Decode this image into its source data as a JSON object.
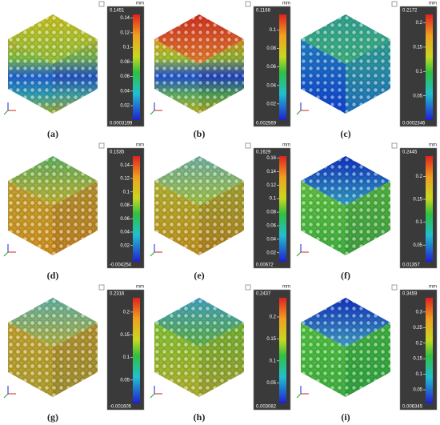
{
  "panels": [
    {
      "label": "(a)",
      "unit": "mm",
      "scale_max": 0.1451,
      "scale_min": 0.0003199,
      "ticks": [
        0.14,
        0.12,
        0.1,
        0.08,
        0.06,
        0.04,
        0.02
      ]
    },
    {
      "label": "(b)",
      "unit": "mm",
      "scale_max": 0.1168,
      "scale_min": 0.002569,
      "ticks": [
        0.1,
        0.08,
        0.06,
        0.04,
        0.02
      ]
    },
    {
      "label": "(c)",
      "unit": "mm",
      "scale_max": 0.2172,
      "scale_min": 0.0002346,
      "ticks": [
        0.2,
        0.15,
        0.1,
        0.05
      ]
    },
    {
      "label": "(d)",
      "unit": "mm",
      "scale_max": 0.1535,
      "scale_min": -0.004254,
      "ticks": [
        0.14,
        0.12,
        0.1,
        0.08,
        0.06,
        0.04,
        0.02
      ]
    },
    {
      "label": "(e)",
      "unit": "mm",
      "scale_max": 0.1629,
      "scale_min": 0.00672,
      "ticks": [
        0.16,
        0.14,
        0.12,
        0.1,
        0.08,
        0.06,
        0.04,
        0.02
      ]
    },
    {
      "label": "(f)",
      "unit": "mm",
      "scale_max": 0.2445,
      "scale_min": 0.01357,
      "ticks": [
        0.2,
        0.15,
        0.1,
        0.05
      ]
    },
    {
      "label": "(g)",
      "unit": "mm",
      "scale_max": 0.2316,
      "scale_min": -0.001605,
      "ticks": [
        0.2,
        0.15,
        0.1,
        0.05
      ]
    },
    {
      "label": "(h)",
      "unit": "mm",
      "scale_max": 0.2437,
      "scale_min": 0.003082,
      "ticks": [
        0.2,
        0.15,
        0.1,
        0.05
      ]
    },
    {
      "label": "(i)",
      "unit": "mm",
      "scale_max": 0.3459,
      "scale_min": 0.006345,
      "ticks": [
        0.3,
        0.25,
        0.2,
        0.15,
        0.1,
        0.05
      ]
    }
  ]
}
